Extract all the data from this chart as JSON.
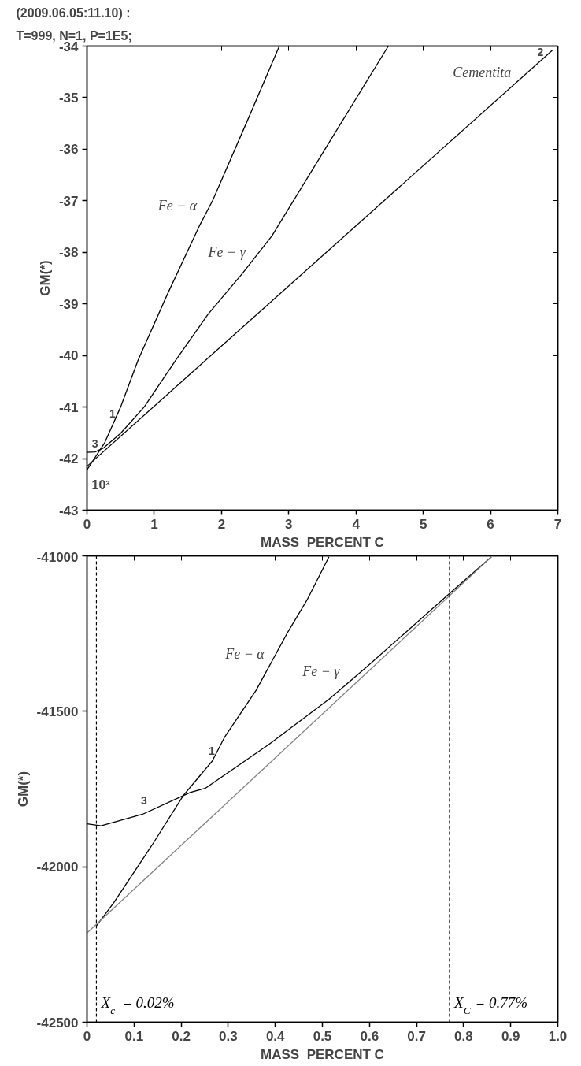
{
  "chart_data": [
    {
      "type": "line",
      "title": "(2009.06.05:11.10) :",
      "subtitle": "T=999, N=1, P=1E5;",
      "xlabel": "MASS_PERCENT C",
      "ylabel": "GM(*)",
      "xlim": [
        0,
        7
      ],
      "ylim": [
        -43,
        -34
      ],
      "xticks": [
        0,
        1,
        2,
        3,
        4,
        5,
        6,
        7
      ],
      "yticks": [
        -43,
        -42,
        -41,
        -40,
        -39,
        -38,
        -37,
        -36,
        -35,
        -34
      ],
      "grid": false,
      "series": [
        {
          "color": "#000000",
          "x": [
            0,
            0.26,
            0.5,
            0.76,
            1.2,
            1.67,
            1.87,
            2.4,
            2.86
          ],
          "values": [
            -42.22,
            -41.7,
            -41.0,
            -40.09,
            -38.8,
            -37.49,
            -36.99,
            -35.4,
            -34.0
          ]
        },
        {
          "color": "#000000",
          "x": [
            0,
            0.12,
            0.25,
            0.5,
            0.85,
            1.32,
            1.8,
            2.31,
            2.75,
            3.6,
            4.48
          ],
          "values": [
            -41.88,
            -41.87,
            -41.79,
            -41.51,
            -41.0,
            -40.09,
            -39.2,
            -38.41,
            -37.68,
            -35.87,
            -34.0
          ]
        },
        {
          "color": "#000000",
          "x": [
            0,
            6.92
          ],
          "values": [
            -42.15,
            -34.08
          ]
        }
      ],
      "annotations": [
        {
          "text": "Fe − α",
          "x": 1.73,
          "y": -37.27
        },
        {
          "text": "Fe − γ",
          "x": 2.45,
          "y": -38.18
        },
        {
          "text": "Cementita",
          "x": 6.4,
          "y": -34.69
        },
        {
          "text": "2",
          "x": 6.74,
          "y": -34.29
        },
        {
          "text": "1",
          "x": 0.38,
          "y": -41.3
        },
        {
          "text": "3",
          "x": 0.12,
          "y": -41.87
        },
        "10³"
      ]
    },
    {
      "type": "line",
      "xlabel": "MASS_PERCENT C",
      "ylabel": "GM(*)",
      "xlim": [
        0,
        1
      ],
      "ylim": [
        -42500,
        -41000
      ],
      "xticks": [
        0,
        0.1,
        0.2,
        0.3,
        0.4,
        0.5,
        0.6,
        0.7,
        0.8,
        0.9,
        {
          "value": 1,
          "label": "1.0"
        }
      ],
      "yticks": [
        -42500,
        -42000,
        -41500,
        -41000
      ],
      "grid": false,
      "series": [
        {
          "color": "#000000",
          "x": [
            0.02,
            0.057,
            0.137,
            0.205,
            0.266,
            0.292,
            0.359,
            0.427,
            0.467,
            0.514
          ],
          "values": [
            -42190,
            -42115,
            -41933,
            -41770,
            -41660,
            -41584,
            -41433,
            -41244,
            -41143,
            -41003
          ]
        },
        {
          "color": "#000000",
          "x": [
            0,
            0.03,
            0.118,
            0.219,
            0.252,
            0.386,
            0.514,
            0.594,
            0.762,
            0.859
          ],
          "values": [
            -41862,
            -41868,
            -41831,
            -41761,
            -41747,
            -41607,
            -41461,
            -41357,
            -41132,
            -41003
          ]
        },
        {
          "color": "#808080",
          "x": [
            0,
            0.859
          ],
          "values": [
            -42213,
            -41003
          ]
        }
      ],
      "ref_lines": [
        {
          "axis": "x",
          "value": 0.02,
          "label": "X$_{c}$ = 0.02%",
          "line_style": "dashed",
          "color": "#000000"
        },
        {
          "axis": "x",
          "value": 0.77,
          "label": "X$_{C}$ = 0.77%",
          "line_style": "dashed",
          "color": "#000000"
        }
      ],
      "annotations": [
        {
          "text": "Fe − α",
          "x": 0.39,
          "y": -41347
        },
        {
          "text": "Fe − γ",
          "x": 0.55,
          "y": -41402
        },
        {
          "text": "1",
          "x": 0.265,
          "y": -41654
        },
        {
          "text": "3",
          "x": 0.121,
          "y": -41815
        }
      ]
    }
  ]
}
